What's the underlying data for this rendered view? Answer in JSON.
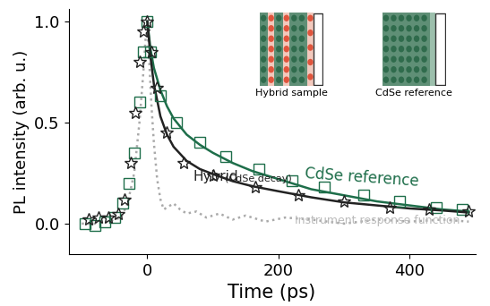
{
  "chart_data": {
    "type": "line",
    "x_label": "Time (ps)",
    "y_label": "PL intensity (arb. u.)",
    "xlim": [
      -120,
      500
    ],
    "xticks": [
      0,
      200,
      400
    ],
    "ylim": [
      -0.15,
      1.06
    ],
    "yticks": [
      0.0,
      0.5,
      1.0
    ],
    "grid": false,
    "series": [
      {
        "type": "line",
        "color": "#aaaaaa",
        "line_style": "dotted",
        "x": [
          -100,
          -80,
          -60,
          -40,
          -30,
          -20,
          -12,
          -6,
          -3,
          0,
          3,
          6,
          10,
          15,
          20,
          25,
          30,
          40,
          50,
          60,
          75,
          90,
          110,
          130,
          150,
          180,
          210,
          250,
          300,
          350,
          400,
          450,
          490
        ],
        "values": [
          0.0,
          0.0,
          0.01,
          0.03,
          0.1,
          0.25,
          0.5,
          0.75,
          0.9,
          0.98,
          0.8,
          0.6,
          0.4,
          0.22,
          0.12,
          0.07,
          0.08,
          0.1,
          0.07,
          0.05,
          0.06,
          0.03,
          0.05,
          0.02,
          0.04,
          0.01,
          0.03,
          0.02,
          0.0,
          0.02,
          0.01,
          0.02,
          0.01
        ]
      },
      {
        "type": "scatter",
        "color": "#1e6e4a",
        "marker": "square",
        "x": [
          -95,
          -80,
          -65,
          -50,
          -38,
          -28,
          -20,
          -12,
          -6,
          0,
          5,
          20,
          45,
          80,
          120,
          170,
          220,
          270,
          330,
          385,
          440,
          480
        ],
        "values": [
          0.0,
          -0.01,
          0.01,
          0.03,
          0.1,
          0.2,
          0.35,
          0.6,
          0.85,
          1.0,
          0.85,
          0.63,
          0.5,
          0.4,
          0.33,
          0.27,
          0.21,
          0.18,
          0.14,
          0.11,
          0.08,
          0.07
        ]
      },
      {
        "type": "scatter",
        "color": "#222222",
        "marker": "star",
        "x": [
          -90,
          -75,
          -60,
          -45,
          -35,
          -25,
          -18,
          -12,
          -6,
          0,
          6,
          15,
          30,
          55,
          100,
          165,
          230,
          300,
          370,
          430,
          490
        ],
        "values": [
          0.02,
          0.03,
          0.03,
          0.05,
          0.12,
          0.3,
          0.55,
          0.8,
          0.95,
          1.0,
          0.85,
          0.67,
          0.45,
          0.3,
          0.24,
          0.18,
          0.14,
          0.11,
          0.08,
          0.07,
          0.06
        ]
      },
      {
        "type": "line",
        "color": "#1e6e4a",
        "line_style": "solid",
        "x": [
          0,
          5,
          10,
          20,
          30,
          40,
          60,
          80,
          100,
          130,
          160,
          200,
          250,
          300,
          350,
          400,
          450,
          490
        ],
        "values": [
          1.0,
          0.86,
          0.77,
          0.66,
          0.58,
          0.52,
          0.44,
          0.39,
          0.35,
          0.3,
          0.26,
          0.22,
          0.17,
          0.14,
          0.11,
          0.09,
          0.07,
          0.06
        ]
      },
      {
        "type": "line",
        "color": "#222222",
        "line_style": "solid",
        "x": [
          0,
          5,
          10,
          20,
          30,
          40,
          60,
          80,
          100,
          130,
          160,
          200,
          250,
          300,
          350,
          400,
          450,
          490
        ],
        "values": [
          1.0,
          0.82,
          0.69,
          0.53,
          0.44,
          0.38,
          0.31,
          0.27,
          0.245,
          0.21,
          0.185,
          0.16,
          0.13,
          0.105,
          0.09,
          0.075,
          0.065,
          0.055
        ]
      }
    ],
    "annotations": [
      {
        "text": "CdSe reference",
        "x": 240,
        "y": 0.17,
        "color": "#1e6e4a"
      },
      {
        "text": "Hybrid",
        "x": 70,
        "y": 0.2,
        "color": "#222222"
      },
      {
        "text": "(CdSe decay)",
        "x": 118,
        "y": 0.2,
        "color": "#222222"
      },
      {
        "text": "Instrument response function",
        "x": 225,
        "y": -0.015,
        "color": "#bbbbbb"
      }
    ],
    "inset_labels": [
      "Hybrid sample",
      "CdSe reference"
    ]
  }
}
